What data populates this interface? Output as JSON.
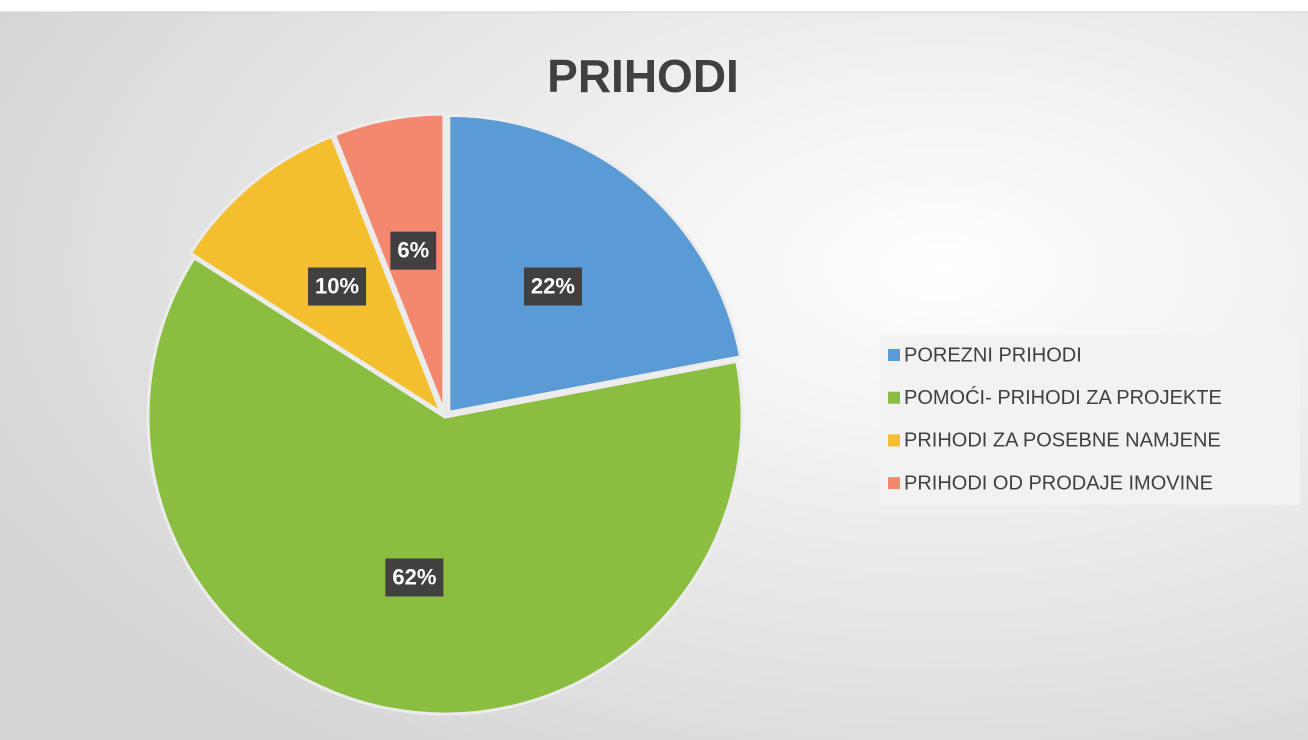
{
  "chart_data": {
    "type": "pie",
    "title": "PRIHODI",
    "categories": [
      "POREZNI PRIHODI",
      "POMOĆI- PRIHODI ZA PROJEKTE",
      "PRIHODI ZA POSEBNE NAMJENE",
      "PRIHODI OD PRODAJE IMOVINE"
    ],
    "values": [
      22,
      62,
      10,
      6
    ],
    "value_labels": [
      "22%",
      "62%",
      "10%",
      "6%"
    ],
    "colors": [
      "#5b9bd5",
      "#8bbd40",
      "#f4bf2f",
      "#f4886e"
    ],
    "legend": "right"
  }
}
